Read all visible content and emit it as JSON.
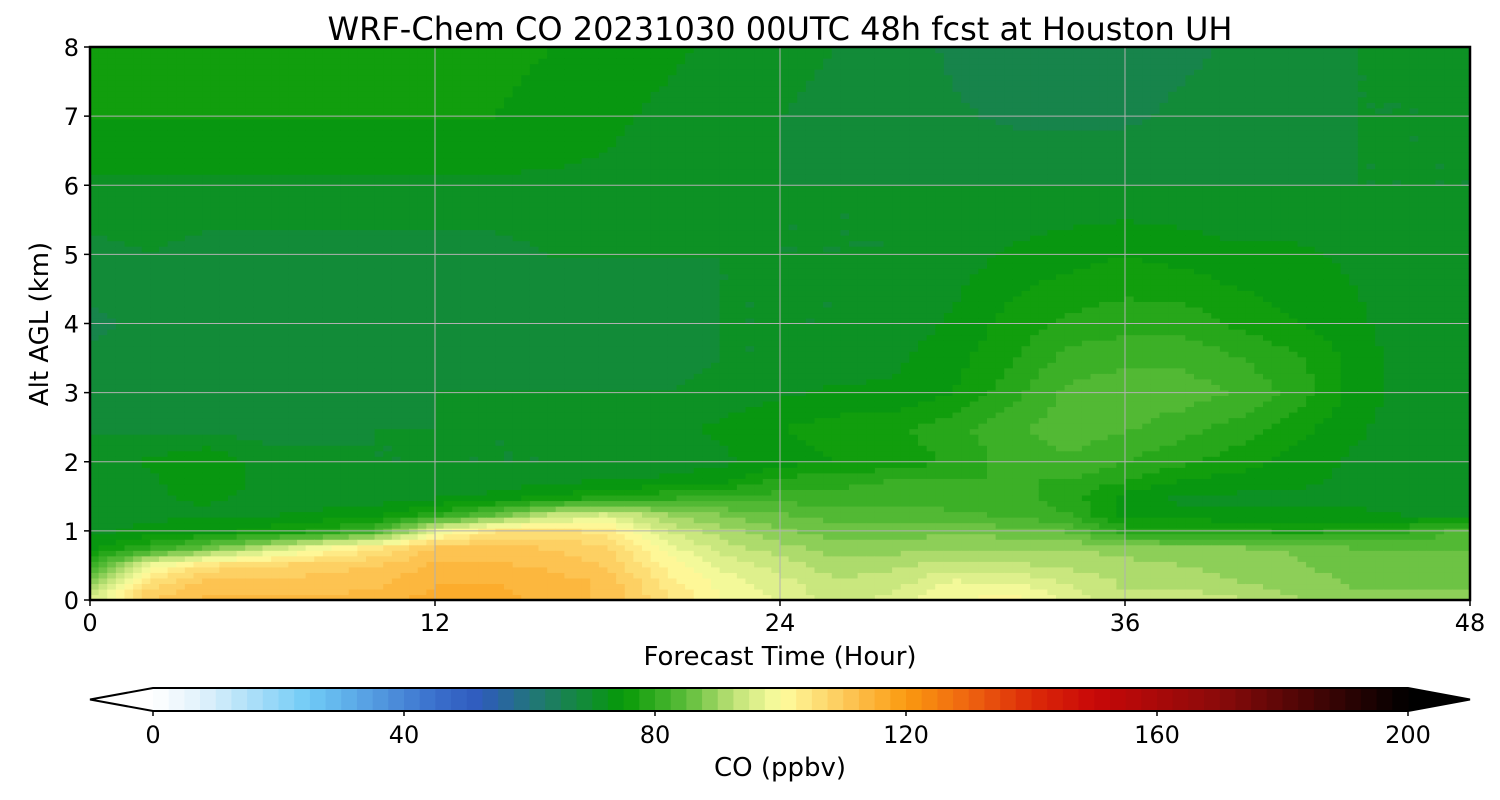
{
  "chart_data": {
    "type": "heatmap",
    "title": "WRF-Chem CO  20231030 00UTC 48h fcst at Houston UH",
    "xlabel": "Forecast Time (Hour)",
    "ylabel": "Alt AGL (km)",
    "xlim": [
      0,
      48
    ],
    "ylim": [
      0,
      8
    ],
    "x_ticks": [
      "0",
      "12",
      "24",
      "36",
      "48"
    ],
    "y_ticks": [
      "0",
      "1",
      "2",
      "3",
      "4",
      "5",
      "6",
      "7",
      "8"
    ],
    "grid": true,
    "x_hours": [
      0,
      2,
      4,
      6,
      8,
      10,
      12,
      14,
      16,
      18,
      20,
      22,
      24,
      26,
      28,
      30,
      32,
      34,
      36,
      38,
      40,
      42,
      44,
      46,
      48
    ],
    "z_km": [
      0,
      0.25,
      0.5,
      0.75,
      1.0,
      1.25,
      1.5,
      1.75,
      2.0,
      2.5,
      3.0,
      3.5,
      4.0,
      5.0,
      6.0,
      7.0,
      8.0
    ],
    "values_ppbv": [
      [
        95,
        110,
        113,
        113,
        113,
        114,
        116,
        116,
        114,
        112,
        106,
        100,
        97,
        94,
        96,
        100,
        101,
        97,
        93,
        94,
        93,
        90,
        88,
        88,
        88
      ],
      [
        88,
        106,
        111,
        111,
        111,
        112,
        115,
        115,
        114,
        112,
        104,
        99,
        96,
        93,
        94,
        98,
        98,
        95,
        92,
        92,
        90,
        89,
        87,
        87,
        87
      ],
      [
        80,
        98,
        106,
        108,
        109,
        110,
        113,
        113,
        112,
        110,
        102,
        97,
        94,
        91,
        92,
        94,
        93,
        92,
        91,
        90,
        89,
        88,
        86,
        86,
        86
      ],
      [
        74,
        80,
        86,
        93,
        100,
        105,
        111,
        111,
        110,
        108,
        99,
        94,
        91,
        89,
        89,
        90,
        90,
        90,
        89,
        88,
        88,
        87,
        85,
        85,
        85
      ],
      [
        72,
        73,
        74,
        76,
        78,
        83,
        97,
        105,
        106,
        104,
        95,
        91,
        88,
        86,
        86,
        87,
        86,
        85,
        79,
        79,
        78,
        77,
        78,
        80,
        84
      ],
      [
        72,
        72,
        72,
        72,
        73,
        74,
        78,
        84,
        92,
        95,
        90,
        87,
        85,
        84,
        84,
        83,
        82,
        80,
        74,
        73,
        73,
        73,
        73,
        72,
        72
      ],
      [
        71,
        72,
        73,
        72,
        71,
        71,
        72,
        73,
        75,
        77,
        79,
        80,
        81,
        81,
        81,
        81,
        81,
        79,
        74,
        72,
        72,
        72,
        72,
        71,
        71
      ],
      [
        70,
        72,
        74,
        72,
        71,
        71,
        71,
        71,
        72,
        72,
        73,
        74,
        78,
        79,
        80,
        80,
        80,
        80,
        78,
        75,
        74,
        73,
        72,
        71,
        71
      ],
      [
        70,
        73,
        75,
        71,
        71,
        70,
        70,
        70,
        70,
        70,
        71,
        72,
        74,
        75,
        76,
        78,
        81,
        82,
        80,
        78,
        76,
        74,
        72,
        71,
        71
      ],
      [
        70,
        69,
        69,
        69,
        69,
        70,
        70,
        70,
        70,
        71,
        72,
        73,
        75,
        76,
        77,
        79,
        82,
        84,
        83,
        81,
        79,
        76,
        73,
        71,
        71
      ],
      [
        68,
        68,
        69,
        69,
        69,
        69,
        70,
        70,
        70,
        70,
        70,
        71,
        72,
        73,
        73,
        75,
        79,
        83,
        84,
        84,
        82,
        79,
        74,
        71,
        70
      ],
      [
        68,
        69,
        69,
        69,
        69,
        69,
        69,
        69,
        69,
        69,
        69,
        70,
        70,
        71,
        72,
        74,
        77,
        81,
        82,
        82,
        80,
        78,
        74,
        71,
        70
      ],
      [
        67,
        68,
        69,
        69,
        68,
        69,
        69,
        69,
        69,
        69,
        69,
        70,
        70,
        70,
        71,
        73,
        76,
        78,
        79,
        79,
        77,
        75,
        73,
        71,
        70
      ],
      [
        69,
        70,
        69,
        69,
        69,
        69,
        69,
        69,
        70,
        70,
        70,
        70,
        70,
        70,
        70,
        71,
        73,
        74,
        75,
        74,
        73,
        73,
        72,
        71,
        70
      ],
      [
        72,
        72,
        72,
        72,
        72,
        72,
        72,
        72,
        72,
        72,
        71,
        71,
        70,
        70,
        70,
        70,
        70,
        70,
        70,
        70,
        70,
        70,
        70,
        70,
        70
      ],
      [
        75,
        75,
        75,
        75,
        75,
        75,
        75,
        75,
        74,
        73,
        72,
        71,
        70,
        69,
        68,
        68,
        67,
        67,
        67,
        68,
        68,
        69,
        70,
        70,
        70
      ],
      [
        76,
        76,
        76,
        76,
        76,
        76,
        76,
        76,
        75,
        74,
        73,
        72,
        71,
        70,
        69,
        67,
        65,
        65,
        66,
        67,
        68,
        69,
        70,
        70,
        70
      ]
    ],
    "colorbar": {
      "label": "CO  (ppbv)",
      "min": 0,
      "max": 200,
      "ticks": [
        "0",
        "40",
        "80",
        "120",
        "160",
        "200"
      ],
      "extend": "both",
      "levels": 80,
      "color_stops": [
        {
          "v": 0,
          "c": "#ffffff"
        },
        {
          "v": 8,
          "c": "#dff1fb"
        },
        {
          "v": 25,
          "c": "#6fcaf6"
        },
        {
          "v": 45,
          "c": "#3a6fcc"
        },
        {
          "v": 52,
          "c": "#2f5bbd"
        },
        {
          "v": 62,
          "c": "#1f7a6d"
        },
        {
          "v": 75,
          "c": "#069a06"
        },
        {
          "v": 85,
          "c": "#5dbd3a"
        },
        {
          "v": 93,
          "c": "#c3e47a"
        },
        {
          "v": 100,
          "c": "#fefea0"
        },
        {
          "v": 110,
          "c": "#fdc95a"
        },
        {
          "v": 120,
          "c": "#fb9a10"
        },
        {
          "v": 130,
          "c": "#ee6410"
        },
        {
          "v": 140,
          "c": "#dc2a08"
        },
        {
          "v": 150,
          "c": "#c80808"
        },
        {
          "v": 170,
          "c": "#8a0a0a"
        },
        {
          "v": 200,
          "c": "#000000"
        }
      ]
    }
  }
}
